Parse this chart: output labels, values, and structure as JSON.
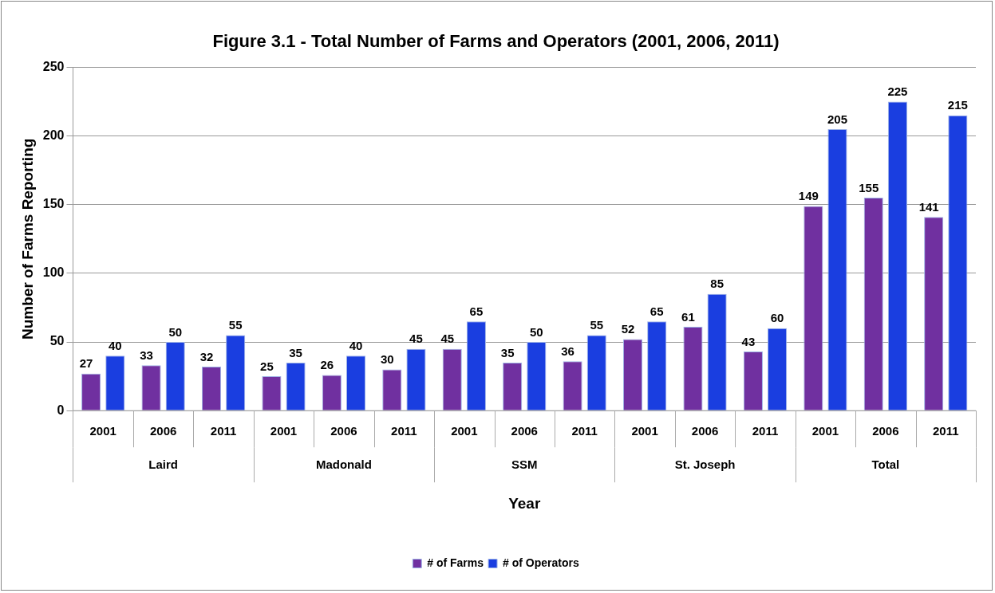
{
  "chart_data": {
    "type": "bar",
    "title": "Figure 3.1 - Total Number of Farms and Operators (2001, 2006, 2011)",
    "xlabel": "Year",
    "ylabel": "Number of Farms Reporting",
    "categories": [
      "2001",
      "2006",
      "2011",
      "2001",
      "2006",
      "2011",
      "2001",
      "2006",
      "2011",
      "2001",
      "2006",
      "2011",
      "2001",
      "2006",
      "2011"
    ],
    "annotations": [
      "Laird",
      "Madonald",
      "SSM",
      "St. Joseph",
      "Total"
    ],
    "series": [
      {
        "name": "# of Farms",
        "color": "#7030a0",
        "values": [
          27,
          33,
          32,
          25,
          26,
          30,
          45,
          35,
          36,
          52,
          61,
          43,
          149,
          155,
          141
        ]
      },
      {
        "name": "# of Operators",
        "color": "#1a3ee0",
        "values": [
          40,
          50,
          55,
          35,
          40,
          45,
          65,
          50,
          55,
          65,
          85,
          60,
          205,
          225,
          215
        ]
      }
    ],
    "ylim": [
      0,
      250
    ],
    "yticks": [
      0,
      50,
      100,
      150,
      200,
      250
    ],
    "grid": "y",
    "legend": "bottom",
    "data_labels": true
  }
}
